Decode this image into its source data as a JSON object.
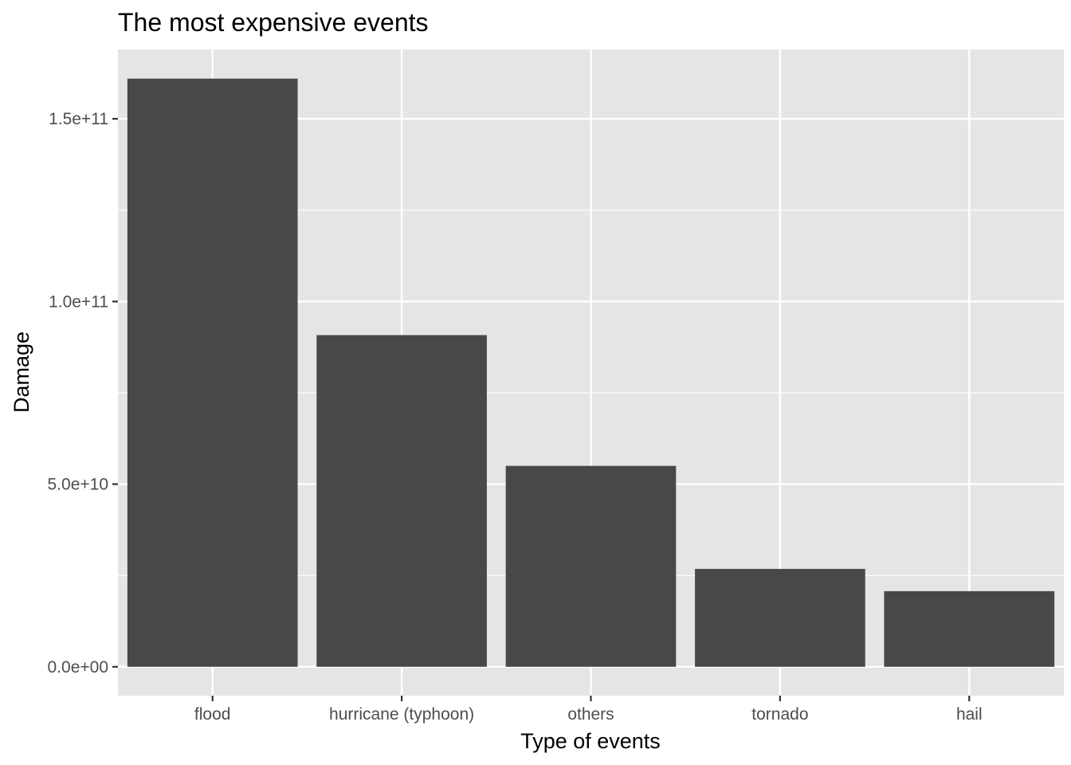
{
  "chart_data": {
    "type": "bar",
    "title": "The most expensive events",
    "xlabel": "Type of events",
    "ylabel": "Damage",
    "categories": [
      "flood",
      "hurricane (typhoon)",
      "others",
      "tornado",
      "hail"
    ],
    "values": [
      161000000000,
      90800000000,
      55000000000,
      26800000000,
      20700000000
    ],
    "ylim": [
      -7900000000,
      169000000000
    ],
    "yticks": [
      0,
      50000000000,
      100000000000,
      150000000000
    ],
    "ytick_labels": [
      "0.0e+00",
      "5.0e+10",
      "1.0e+11",
      "1.5e+11"
    ],
    "grid": true,
    "legend": "none",
    "colors": {
      "bar": "#484848",
      "panel": "#e5e5e5",
      "grid": "#ffffff",
      "tick": "#333333"
    }
  }
}
